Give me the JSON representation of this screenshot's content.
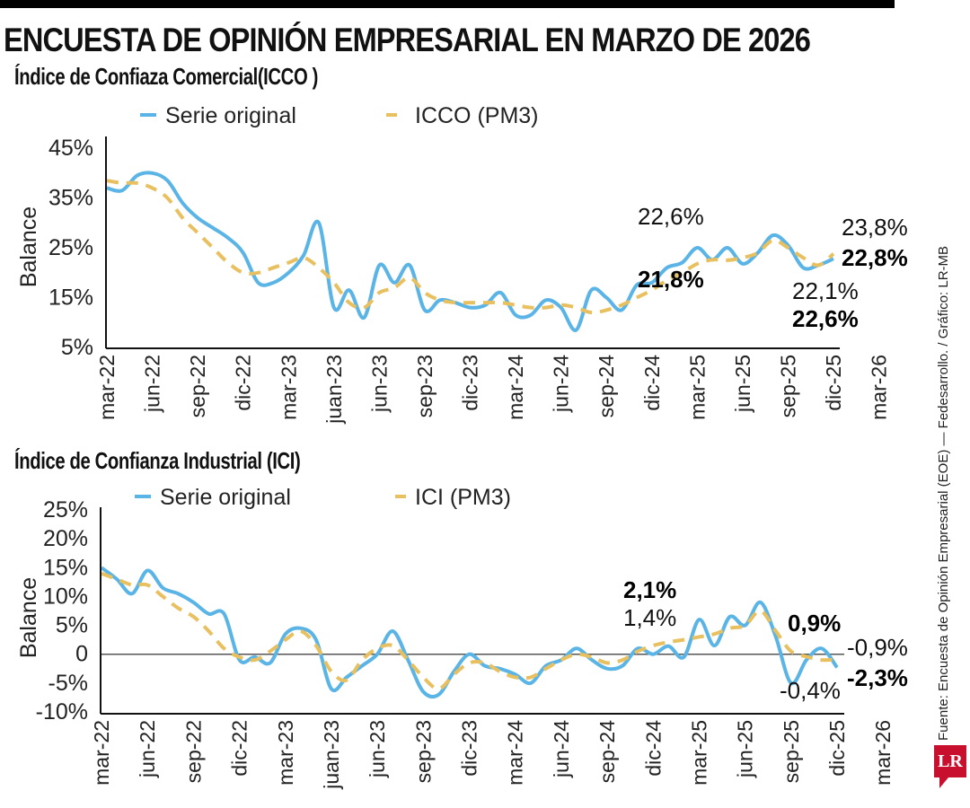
{
  "header": {
    "title": "ENCUESTA DE OPINIÓN EMPRESARIAL EN MARZO DE 2026"
  },
  "source": "Fuente: Encuesta de Opinión Empresarial (EOE) — Fedesarrollo. / Gráfico: LR-MB",
  "logo": "LR",
  "colors": {
    "original": "#5ab4e5",
    "pm3": "#e8c060",
    "axis": "#111111",
    "zero_line": "#555555"
  },
  "chart_data": [
    {
      "type": "line",
      "title": "Índice de Confiaza Comercial(ICCO )",
      "xlabel": "",
      "ylabel": "Balance",
      "ylim": [
        5,
        45
      ],
      "yticks": [
        "45%",
        "35%",
        "25%",
        "15%",
        "5%"
      ],
      "ytick_values": [
        45,
        35,
        25,
        15,
        5
      ],
      "grid": false,
      "legend_position": "top",
      "categories": [
        "mar-22",
        "jun-22",
        "sep-22",
        "dic-22",
        "mar-23",
        "juan-23",
        "jun-23",
        "sep-23",
        "dic-23",
        "mar-24",
        "jun-24",
        "sep-24",
        "dic-24",
        "mar-25",
        "jun-25",
        "sep-25",
        "dic-25",
        "mar-26"
      ],
      "x_months": 49,
      "series": [
        {
          "name": "Serie original",
          "style": "solid",
          "values": [
            37,
            36.5,
            39.5,
            40,
            38.5,
            34,
            31,
            29,
            27,
            24,
            18,
            18,
            20,
            23.5,
            30,
            13,
            16.5,
            11,
            21.5,
            18,
            21.5,
            12.5,
            14.5,
            14,
            13,
            13.5,
            16,
            11.5,
            11.5,
            14.5,
            13,
            8.5,
            16.5,
            15,
            12.5,
            17.5,
            18,
            21,
            22,
            25,
            22.6,
            25,
            21.8,
            24,
            27.5,
            25.5,
            21,
            21.5,
            22.8
          ]
        },
        {
          "name": "ICCO (PM3)",
          "style": "dashed",
          "values": [
            38.5,
            38,
            38,
            37,
            35,
            31,
            28,
            25,
            22,
            20,
            20,
            21,
            22,
            23,
            21,
            18,
            14,
            13,
            16,
            17,
            19,
            16,
            14.5,
            14,
            14,
            14,
            14,
            13.5,
            13,
            13,
            13.5,
            13,
            12,
            12.5,
            13.5,
            15,
            16.5,
            18.5,
            20,
            21.8,
            22.6,
            22.5,
            23,
            24,
            26.5,
            25,
            23,
            21.5,
            23.8
          ]
        }
      ],
      "annotations": [
        {
          "text": "22,6%",
          "bold": false
        },
        {
          "text": "21,8%",
          "bold": true
        },
        {
          "text": "23,8%",
          "bold": false
        },
        {
          "text": "22,8%",
          "bold": true
        },
        {
          "text": "22,1%",
          "bold": false
        },
        {
          "text": "22,6%",
          "bold": true
        }
      ]
    },
    {
      "type": "line",
      "title": "Índice de Confianza Industrial (ICI)",
      "xlabel": "",
      "ylabel": "Balance",
      "ylim": [
        -10,
        25
      ],
      "yticks": [
        "25%",
        "20%",
        "15%",
        "10%",
        "5%",
        "0",
        "-5%",
        "-10%"
      ],
      "ytick_values": [
        25,
        20,
        15,
        10,
        5,
        0,
        -5,
        -10
      ],
      "grid": false,
      "reference_line": 0,
      "legend_position": "top",
      "categories": [
        "mar-22",
        "jun-22",
        "sep-22",
        "dic-22",
        "mar-23",
        "juan-23",
        "jun-23",
        "sep-23",
        "dic-23",
        "mar-24",
        "jun-24",
        "sep-24",
        "dic-24",
        "mar-25",
        "jun-25",
        "sep-25",
        "dic-25",
        "mar-26"
      ],
      "x_months": 49,
      "series": [
        {
          "name": "Serie original",
          "style": "solid",
          "values": [
            15,
            13,
            10.5,
            14.5,
            11.5,
            10.5,
            9,
            7,
            7,
            -1,
            -0.5,
            -1.5,
            3.5,
            4.5,
            2.5,
            -6,
            -4,
            -2,
            0,
            4,
            -1,
            -6.5,
            -7,
            -3,
            0,
            -2,
            -2.5,
            -3.5,
            -5,
            -2,
            -1,
            1,
            -1,
            -2.5,
            -2,
            1,
            0,
            1.4,
            -0.5,
            6,
            1.5,
            6.5,
            5,
            9,
            3,
            -5,
            -1,
            1,
            -2.3
          ]
        },
        {
          "name": "ICI (PM3)",
          "style": "dashed",
          "values": [
            14,
            13,
            12,
            12,
            10,
            8,
            6.5,
            4,
            1,
            -0.5,
            -1,
            0.5,
            2.5,
            4,
            1.5,
            -3,
            -4.5,
            -1,
            1,
            1.5,
            -1,
            -4,
            -6,
            -3.5,
            -1.5,
            -1.5,
            -3,
            -4,
            -4,
            -2.5,
            -1,
            0,
            -0.5,
            -1.5,
            -1,
            0.5,
            1.5,
            2.1,
            2.5,
            3,
            3.5,
            4.5,
            5,
            7.5,
            4,
            0.5,
            -0.4,
            -1,
            -0.9
          ]
        }
      ],
      "annotations": [
        {
          "text": "2,1%",
          "bold": true
        },
        {
          "text": "1,4%",
          "bold": false
        },
        {
          "text": "0,9%",
          "bold": true
        },
        {
          "text": "-0,9%",
          "bold": false
        },
        {
          "text": "-0,4%",
          "bold": false
        },
        {
          "text": "-2,3%",
          "bold": true
        }
      ]
    }
  ]
}
